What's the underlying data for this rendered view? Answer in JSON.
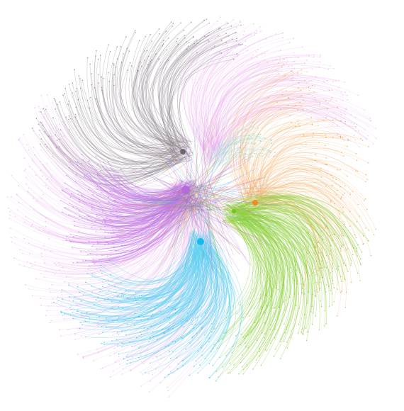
{
  "diagram": {
    "type": "network-graph",
    "layout": "radial-curved-edges",
    "background": "#ffffff",
    "clusters": [
      {
        "id": "gray",
        "color": "#6f6670",
        "edge_color": "#8a7f8a",
        "hub": true
      },
      {
        "id": "pink",
        "color": "#e7a6ea",
        "edge_color": "#e7a6ea",
        "hub": false
      },
      {
        "id": "violet",
        "color": "#b66bdc",
        "edge_color": "#c47ae6",
        "hub": true
      },
      {
        "id": "orange",
        "color": "#f08a24",
        "edge_color": "#f7b36a",
        "hub": true
      },
      {
        "id": "green",
        "color": "#74c21c",
        "edge_color": "#8fd03b",
        "hub": true
      },
      {
        "id": "cyan",
        "color": "#1ab8ea",
        "edge_color": "#5fd0f2",
        "hub": true
      },
      {
        "id": "teal",
        "color": "#6fd3c6",
        "edge_color": "#9fe3da",
        "hub": false
      }
    ]
  }
}
